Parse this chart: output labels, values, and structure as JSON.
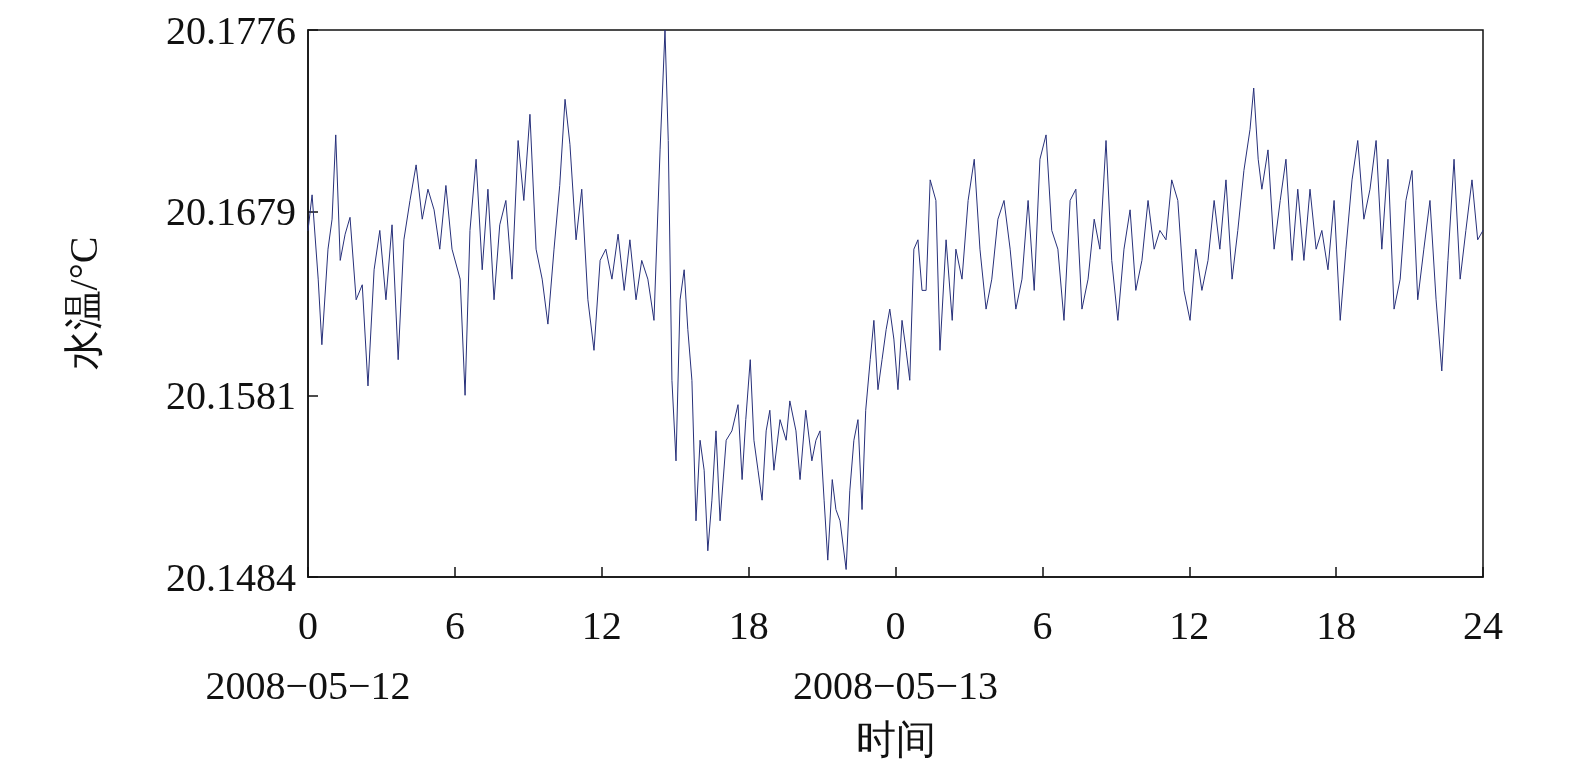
{
  "chart_data": {
    "type": "line",
    "xlabel": "时间",
    "ylabel": "水温/°C",
    "marker": "none",
    "xlim": [
      "2008-05-12T00:00",
      "2008-05-14T00:00"
    ],
    "ylim": [
      20.1484,
      20.1776
    ],
    "xticks": [
      {
        "value": "2008-05-12T00:00",
        "label": "0\n2008−05−12"
      },
      {
        "value": "2008-05-12T06:00",
        "label": "6"
      },
      {
        "value": "2008-05-12T12:00",
        "label": "12"
      },
      {
        "value": "2008-05-12T18:00",
        "label": "18"
      },
      {
        "value": "2008-05-13T00:00",
        "label": "0\n2008−05−13"
      },
      {
        "value": "2008-05-13T06:00",
        "label": "6"
      },
      {
        "value": "2008-05-13T12:00",
        "label": "12"
      },
      {
        "value": "2008-05-13T18:00",
        "label": "18"
      },
      {
        "value": "2008-05-14T00:00",
        "label": "24"
      }
    ],
    "yticks": [
      20.1484,
      20.1581,
      20.1679,
      20.1776
    ],
    "x": [
      "2008-05-12T00:00",
      "2008-05-12T00:10",
      "2008-05-12T00:25",
      "2008-05-12T00:34",
      "2008-05-12T00:49",
      "2008-05-12T00:59",
      "2008-05-12T01:08",
      "2008-05-12T01:19",
      "2008-05-12T01:31",
      "2008-05-12T01:43",
      "2008-05-12T01:58",
      "2008-05-12T02:13",
      "2008-05-12T02:27",
      "2008-05-12T02:42",
      "2008-05-12T02:56",
      "2008-05-12T03:11",
      "2008-05-12T03:26",
      "2008-05-12T03:41",
      "2008-05-12T03:55",
      "2008-05-12T04:10",
      "2008-05-12T04:25",
      "2008-05-12T04:40",
      "2008-05-12T04:54",
      "2008-05-12T05:09",
      "2008-05-12T05:23",
      "2008-05-12T05:38",
      "2008-05-12T05:53",
      "2008-05-12T06:13",
      "2008-05-12T06:25",
      "2008-05-12T06:37",
      "2008-05-12T06:52",
      "2008-05-12T07:07",
      "2008-05-12T07:21",
      "2008-05-12T07:36",
      "2008-05-12T07:50",
      "2008-05-12T08:05",
      "2008-05-12T08:20",
      "2008-05-12T08:35",
      "2008-05-12T08:49",
      "2008-05-12T09:04",
      "2008-05-12T09:19",
      "2008-05-12T09:34",
      "2008-05-12T09:48",
      "2008-05-12T10:03",
      "2008-05-12T10:17",
      "2008-05-12T10:30",
      "2008-05-12T10:42",
      "2008-05-12T10:57",
      "2008-05-12T11:11",
      "2008-05-12T11:26",
      "2008-05-12T11:41",
      "2008-05-12T11:56",
      "2008-05-12T12:10",
      "2008-05-12T12:25",
      "2008-05-12T12:40",
      "2008-05-12T12:55",
      "2008-05-12T13:09",
      "2008-05-12T13:24",
      "2008-05-12T13:38",
      "2008-05-12T13:53",
      "2008-05-12T14:08",
      "2008-05-12T14:23",
      "2008-05-12T14:35",
      "2008-05-12T14:43",
      "2008-05-12T14:52",
      "2008-05-12T15:02",
      "2008-05-12T15:12",
      "2008-05-12T15:22",
      "2008-05-12T15:31",
      "2008-05-12T15:41",
      "2008-05-12T15:51",
      "2008-05-12T16:01",
      "2008-05-12T16:11",
      "2008-05-12T16:20",
      "2008-05-12T16:30",
      "2008-05-12T16:40",
      "2008-05-12T16:50",
      "2008-05-12T17:05",
      "2008-05-12T17:19",
      "2008-05-12T17:34",
      "2008-05-12T17:44",
      "2008-05-12T17:53",
      "2008-05-12T18:04",
      "2008-05-12T18:13",
      "2008-05-12T18:23",
      "2008-05-12T18:33",
      "2008-05-12T18:43",
      "2008-05-12T18:52",
      "2008-05-12T19:02",
      "2008-05-12T19:17",
      "2008-05-12T19:32",
      "2008-05-12T19:41",
      "2008-05-12T19:56",
      "2008-05-12T20:06",
      "2008-05-12T20:20",
      "2008-05-12T20:35",
      "2008-05-12T20:45",
      "2008-05-12T20:55",
      "2008-05-12T21:05",
      "2008-05-12T21:14",
      "2008-05-12T21:25",
      "2008-05-12T21:34",
      "2008-05-12T21:44",
      "2008-05-12T21:59",
      "2008-05-12T22:08",
      "2008-05-12T22:18",
      "2008-05-12T22:28",
      "2008-05-12T22:38",
      "2008-05-12T22:47",
      "2008-05-12T22:58",
      "2008-05-12T23:07",
      "2008-05-12T23:17",
      "2008-05-12T23:27",
      "2008-05-12T23:37",
      "2008-05-12T23:46",
      "2008-05-12T23:56",
      "2008-05-13T00:06",
      "2008-05-13T00:16",
      "2008-05-13T00:26",
      "2008-05-13T00:35",
      "2008-05-13T00:45",
      "2008-05-13T00:55",
      "2008-05-13T01:05",
      "2008-05-13T01:15",
      "2008-05-13T01:25",
      "2008-05-13T01:39",
      "2008-05-13T01:49",
      "2008-05-13T02:04",
      "2008-05-13T02:19",
      "2008-05-13T02:28",
      "2008-05-13T02:43",
      "2008-05-13T02:58",
      "2008-05-13T03:13",
      "2008-05-13T03:27",
      "2008-05-13T03:42",
      "2008-05-13T03:56",
      "2008-05-13T04:11",
      "2008-05-13T04:26",
      "2008-05-13T04:41",
      "2008-05-13T04:55",
      "2008-05-13T05:10",
      "2008-05-13T05:25",
      "2008-05-13T05:40",
      "2008-05-13T05:54",
      "2008-05-13T06:09",
      "2008-05-13T06:23",
      "2008-05-13T06:38",
      "2008-05-13T06:53",
      "2008-05-13T07:08",
      "2008-05-13T07:22",
      "2008-05-13T07:37",
      "2008-05-13T07:52",
      "2008-05-13T08:07",
      "2008-05-13T08:21",
      "2008-05-13T08:36",
      "2008-05-13T08:50",
      "2008-05-13T09:05",
      "2008-05-13T09:20",
      "2008-05-13T09:35",
      "2008-05-13T09:49",
      "2008-05-13T10:04",
      "2008-05-13T10:19",
      "2008-05-13T10:34",
      "2008-05-13T10:48",
      "2008-05-13T11:03",
      "2008-05-13T11:17",
      "2008-05-13T11:32",
      "2008-05-13T11:47",
      "2008-05-13T12:02",
      "2008-05-13T12:16",
      "2008-05-13T12:31",
      "2008-05-13T12:46",
      "2008-05-13T13:01",
      "2008-05-13T13:15",
      "2008-05-13T13:30",
      "2008-05-13T13:45",
      "2008-05-13T13:59",
      "2008-05-13T14:14",
      "2008-05-13T14:29",
      "2008-05-13T14:38",
      "2008-05-13T14:49",
      "2008-05-13T14:58",
      "2008-05-13T15:13",
      "2008-05-13T15:28",
      "2008-05-13T15:43",
      "2008-05-13T15:57",
      "2008-05-13T16:12",
      "2008-05-13T16:26",
      "2008-05-13T16:41",
      "2008-05-13T16:56",
      "2008-05-13T17:11",
      "2008-05-13T17:25",
      "2008-05-13T17:40",
      "2008-05-13T17:55",
      "2008-05-13T18:10",
      "2008-05-13T18:24",
      "2008-05-13T18:39",
      "2008-05-13T18:53",
      "2008-05-13T19:08",
      "2008-05-13T19:23",
      "2008-05-13T19:38",
      "2008-05-13T19:52",
      "2008-05-13T20:07",
      "2008-05-13T20:22",
      "2008-05-13T20:37",
      "2008-05-13T20:51",
      "2008-05-13T21:06",
      "2008-05-13T21:20",
      "2008-05-13T21:35",
      "2008-05-13T21:50",
      "2008-05-13T22:05",
      "2008-05-13T22:19",
      "2008-05-13T22:34",
      "2008-05-13T22:49",
      "2008-05-13T23:04",
      "2008-05-13T23:18",
      "2008-05-13T23:33",
      "2008-05-13T23:47",
      "2008-05-14T00:00"
    ],
    "series": [
      {
        "color": "#27307a",
        "values": [
          20.1669,
          20.1688,
          20.1643,
          20.1608,
          20.1659,
          20.1675,
          20.172,
          20.1653,
          20.1667,
          20.1676,
          20.1632,
          20.164,
          20.1586,
          20.1648,
          20.1669,
          20.1632,
          20.1672,
          20.16,
          20.1664,
          20.1685,
          20.1704,
          20.1675,
          20.1691,
          20.168,
          20.1659,
          20.1693,
          20.1659,
          20.1643,
          20.1581,
          20.1669,
          20.1707,
          20.1648,
          20.1691,
          20.1632,
          20.1672,
          20.1685,
          20.1643,
          20.1717,
          20.1685,
          20.1731,
          20.1659,
          20.1643,
          20.1619,
          20.1659,
          20.1693,
          20.1739,
          20.1715,
          20.1664,
          20.1691,
          20.1632,
          20.1605,
          20.1653,
          20.1659,
          20.1643,
          20.1667,
          20.1637,
          20.1664,
          20.1632,
          20.1653,
          20.1643,
          20.1621,
          20.1712,
          20.1776,
          20.1717,
          20.1589,
          20.1546,
          20.1632,
          20.1648,
          20.1616,
          20.1589,
          20.1514,
          20.1557,
          20.1541,
          20.1498,
          20.1525,
          20.1562,
          20.1514,
          20.1557,
          20.1562,
          20.1576,
          20.1536,
          20.1568,
          20.16,
          20.1557,
          20.1541,
          20.1525,
          20.1562,
          20.1573,
          20.1541,
          20.1568,
          20.1557,
          20.1578,
          20.1562,
          20.1536,
          20.1573,
          20.1546,
          20.1557,
          20.1562,
          20.1525,
          20.1493,
          20.1536,
          20.152,
          20.1514,
          20.1488,
          20.153,
          20.1557,
          20.1568,
          20.152,
          20.1573,
          20.16,
          20.1621,
          20.1584,
          20.16,
          20.1616,
          20.1627,
          20.1611,
          20.1584,
          20.1621,
          20.1605,
          20.1589,
          20.1659,
          20.1664,
          20.1637,
          20.1637,
          20.1696,
          20.1685,
          20.1605,
          20.1664,
          20.1621,
          20.1659,
          20.1643,
          20.1685,
          20.1707,
          20.1659,
          20.1627,
          20.1643,
          20.1675,
          20.1685,
          20.1659,
          20.1627,
          20.1643,
          20.1685,
          20.1637,
          20.1707,
          20.172,
          20.1669,
          20.1659,
          20.1621,
          20.1685,
          20.1691,
          20.1627,
          20.1643,
          20.1675,
          20.1659,
          20.1717,
          20.1653,
          20.1621,
          20.1659,
          20.168,
          20.1637,
          20.1653,
          20.1685,
          20.1659,
          20.1669,
          20.1664,
          20.1696,
          20.1685,
          20.1637,
          20.1621,
          20.1659,
          20.1637,
          20.1653,
          20.1685,
          20.1659,
          20.1696,
          20.1643,
          20.1669,
          20.1701,
          20.1723,
          20.1745,
          20.1707,
          20.1691,
          20.1712,
          20.1659,
          20.1685,
          20.1707,
          20.1653,
          20.1691,
          20.1653,
          20.1691,
          20.1659,
          20.1669,
          20.1648,
          20.1685,
          20.1621,
          20.1659,
          20.1696,
          20.1717,
          20.1675,
          20.1691,
          20.1717,
          20.1659,
          20.1707,
          20.1627,
          20.1643,
          20.1685,
          20.1701,
          20.1632,
          20.1659,
          20.1685,
          20.1632,
          20.1594,
          20.1653,
          20.1707,
          20.1643,
          20.1669,
          20.1696,
          20.1664,
          20.1669
        ]
      }
    ]
  }
}
